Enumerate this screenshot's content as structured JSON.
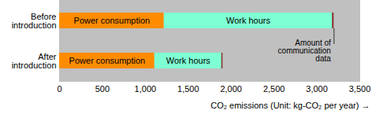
{
  "chart_data": {
    "type": "bar",
    "orientation": "horizontal",
    "stacked": true,
    "categories": [
      "Before introduction",
      "After introduction"
    ],
    "series": [
      {
        "name": "Power consumption",
        "color": "#ff8c00",
        "values": [
          1220,
          1110
        ]
      },
      {
        "name": "Work hours",
        "color": "#7fffd4",
        "values": [
          1960,
          780
        ]
      },
      {
        "name": "Amount of communication data",
        "color": "#8b3a3a",
        "values": [
          20,
          15
        ]
      }
    ],
    "xlabel": "CO₂ emissions (Unit: kg-CO₂ per year)",
    "xlim": [
      0,
      3500
    ],
    "xticks": [
      0,
      500,
      {
        "value": 1000,
        "label": "1,000"
      },
      {
        "value": 1500,
        "label": "1,500"
      },
      {
        "value": 2000,
        "label": "2,000"
      },
      {
        "value": 2500,
        "label": "2,500"
      },
      {
        "value": 3000,
        "label": "3,000"
      },
      {
        "value": 3500,
        "label": "3,500"
      }
    ],
    "grid": false
  }
}
